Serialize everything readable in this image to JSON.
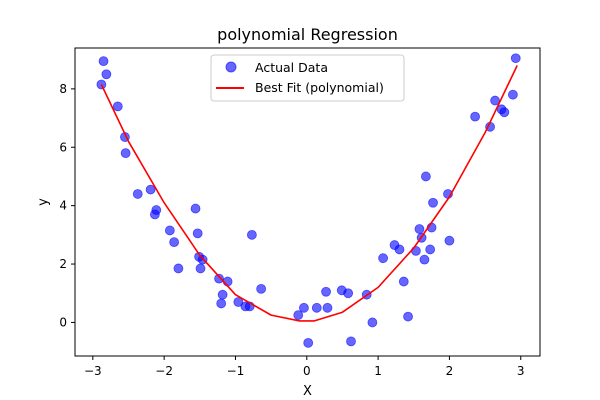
{
  "chart_data": {
    "type": "scatter",
    "title": "polynomial Regression",
    "xlabel": "X",
    "ylabel": "y",
    "xlim": [
      -3.25,
      3.27
    ],
    "ylim": [
      -1.15,
      9.4
    ],
    "xticks": [
      -3,
      -2,
      -1,
      0,
      1,
      2,
      3
    ],
    "yticks": [
      0,
      2,
      4,
      6,
      8
    ],
    "grid": false,
    "legend_position": "upper center",
    "series": [
      {
        "name": "Actual Data",
        "kind": "scatter",
        "color": "#0000ff",
        "alpha": 0.6,
        "points": [
          [
            -2.88,
            8.15
          ],
          [
            -2.85,
            8.95
          ],
          [
            -2.81,
            8.5
          ],
          [
            -2.65,
            7.4
          ],
          [
            -2.55,
            6.35
          ],
          [
            -2.54,
            5.8
          ],
          [
            -2.37,
            4.4
          ],
          [
            -2.19,
            4.55
          ],
          [
            -2.13,
            3.7
          ],
          [
            -2.11,
            3.85
          ],
          [
            -1.92,
            3.15
          ],
          [
            -1.86,
            2.75
          ],
          [
            -1.8,
            1.85
          ],
          [
            -1.56,
            3.9
          ],
          [
            -1.53,
            3.05
          ],
          [
            -1.51,
            2.25
          ],
          [
            -1.49,
            1.85
          ],
          [
            -1.46,
            2.15
          ],
          [
            -1.23,
            1.5
          ],
          [
            -1.2,
            0.65
          ],
          [
            -1.18,
            0.95
          ],
          [
            -1.11,
            1.4
          ],
          [
            -0.96,
            0.7
          ],
          [
            -0.86,
            0.55
          ],
          [
            -0.8,
            0.55
          ],
          [
            -0.77,
            3.0
          ],
          [
            -0.64,
            1.15
          ],
          [
            -0.12,
            0.25
          ],
          [
            -0.04,
            0.5
          ],
          [
            0.02,
            -0.7
          ],
          [
            0.14,
            0.5
          ],
          [
            0.27,
            1.05
          ],
          [
            0.29,
            0.5
          ],
          [
            0.49,
            1.1
          ],
          [
            0.58,
            1.0
          ],
          [
            0.62,
            -0.65
          ],
          [
            0.84,
            0.95
          ],
          [
            0.92,
            0.0
          ],
          [
            1.07,
            2.2
          ],
          [
            1.23,
            2.65
          ],
          [
            1.3,
            2.5
          ],
          [
            1.36,
            1.4
          ],
          [
            1.42,
            0.2
          ],
          [
            1.53,
            2.45
          ],
          [
            1.58,
            3.2
          ],
          [
            1.61,
            2.9
          ],
          [
            1.65,
            2.15
          ],
          [
            1.67,
            5.0
          ],
          [
            1.73,
            2.5
          ],
          [
            1.75,
            3.25
          ],
          [
            1.77,
            4.1
          ],
          [
            1.98,
            4.4
          ],
          [
            2.0,
            2.8
          ],
          [
            2.36,
            7.05
          ],
          [
            2.57,
            6.7
          ],
          [
            2.64,
            7.6
          ],
          [
            2.73,
            7.3
          ],
          [
            2.77,
            7.2
          ],
          [
            2.89,
            7.8
          ],
          [
            2.93,
            9.05
          ]
        ]
      },
      {
        "name": "Best Fit (polynomial)",
        "kind": "line",
        "color": "#ff0000",
        "x": [
          -2.88,
          -2.5,
          -2.0,
          -1.5,
          -1.0,
          -0.5,
          -0.1,
          0.1,
          0.5,
          1.0,
          1.5,
          2.0,
          2.5,
          2.95
        ],
        "y": [
          8.15,
          6.2,
          4.1,
          2.3,
          0.95,
          0.25,
          0.05,
          0.05,
          0.35,
          1.2,
          2.55,
          4.3,
          6.5,
          8.8
        ]
      }
    ]
  }
}
